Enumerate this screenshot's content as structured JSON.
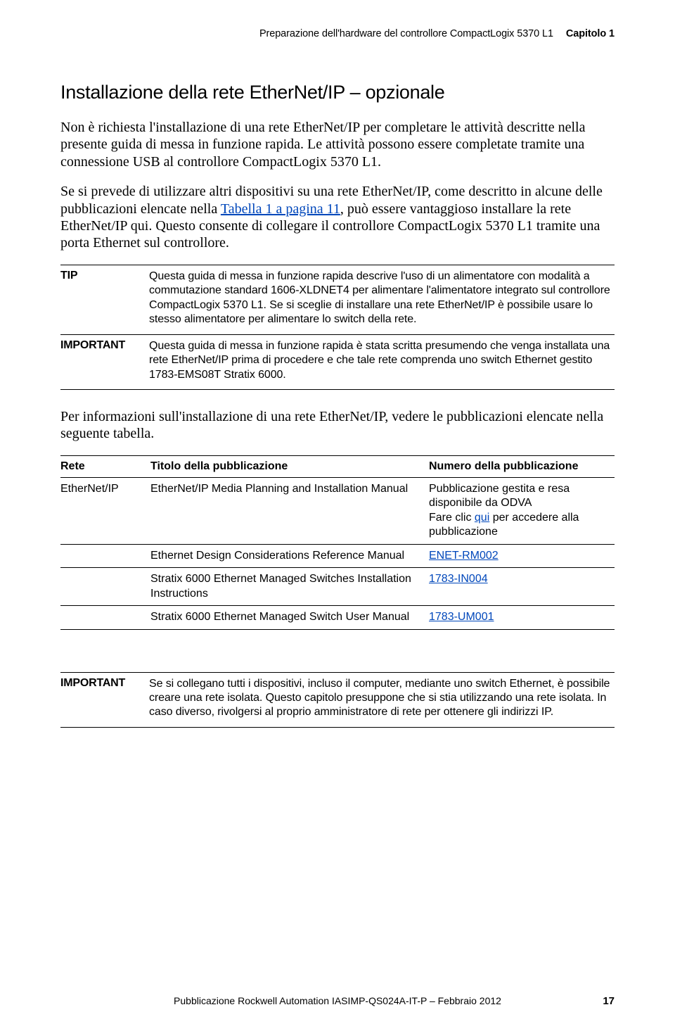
{
  "header": {
    "running_title": "Preparazione dell'hardware del controllore CompactLogix 5370 L1",
    "chapter_label": "Capitolo 1"
  },
  "section_title": "Installazione della rete EtherNet/IP – opzionale",
  "para1": "Non è richiesta l'installazione di una rete EtherNet/IP per completare le attività descritte nella presente guida di messa in funzione rapida. Le attività possono essere completate tramite una connessione USB al controllore CompactLogix 5370 L1.",
  "para2_a": "Se si prevede di utilizzare altri dispositivi su una rete EtherNet/IP, come descritto in alcune delle pubblicazioni elencate nella ",
  "para2_link": "Tabella 1 a pagina 11",
  "para2_b": ", può essere vantaggioso installare la rete EtherNet/IP qui. Questo consente di collegare il controllore CompactLogix 5370 L1 tramite una porta Ethernet sul controllore.",
  "callouts1": [
    {
      "label": "TIP",
      "text": "Questa guida di messa in funzione rapida descrive l'uso di un alimentatore con modalità a commutazione standard 1606-XLDNET4 per alimentare l'alimentatore integrato sul controllore CompactLogix 5370 L1. Se si sceglie di installare una rete EtherNet/IP è possibile usare lo stesso alimentatore per alimentare lo switch della rete."
    },
    {
      "label": "IMPORTANT",
      "text": "Questa guida di messa in funzione rapida è stata scritta presumendo che venga installata una rete EtherNet/IP prima di procedere e che tale rete comprenda uno switch Ethernet gestito 1783-EMS08T Stratix 6000."
    }
  ],
  "para3": "Per informazioni sull'installazione di una rete EtherNet/IP, vedere le pubblicazioni elencate nella seguente tabella.",
  "pub_table": {
    "headers": {
      "rete": "Rete",
      "titolo": "Titolo della pubblicazione",
      "numero": "Numero della pubblicazione"
    },
    "rows": [
      {
        "rete": "EtherNet/IP",
        "titolo": "EtherNet/IP Media Planning and Installation Manual",
        "numero_plain_a": "Pubblicazione gestita e resa disponibile da ODVA",
        "numero_plain_b_pre": "Fare clic ",
        "numero_link": "qui",
        "numero_plain_b_post": " per accedere alla pubblicazione"
      },
      {
        "rete": "",
        "titolo": "Ethernet Design Considerations Reference Manual",
        "numero_link": "ENET-RM002"
      },
      {
        "rete": "",
        "titolo": "Stratix 6000 Ethernet Managed Switches Installation Instructions",
        "numero_link": "1783-IN004"
      },
      {
        "rete": "",
        "titolo": "Stratix 6000 Ethernet Managed Switch User Manual",
        "numero_link": "1783-UM001"
      }
    ]
  },
  "callouts2": [
    {
      "label": "IMPORTANT",
      "text": "Se si collegano tutti i dispositivi, incluso il computer, mediante uno switch Ethernet, è possibile creare una rete isolata. Questo capitolo presuppone che si stia utilizzando una rete isolata. In caso diverso, rivolgersi al proprio amministratore di rete per ottenere gli indirizzi IP."
    }
  ],
  "footer": {
    "publication": "Pubblicazione Rockwell Automation IASIMP-QS024A-IT-P – Febbraio 2012",
    "page_number": "17"
  },
  "colors": {
    "text": "#000000",
    "link": "#0047bb",
    "background": "#ffffff"
  }
}
